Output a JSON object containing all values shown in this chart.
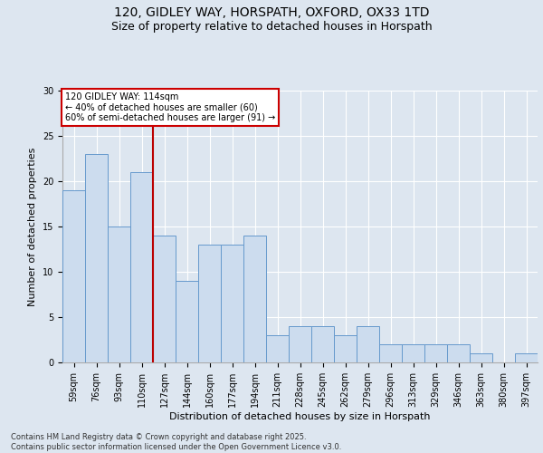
{
  "title_line1": "120, GIDLEY WAY, HORSPATH, OXFORD, OX33 1TD",
  "title_line2": "Size of property relative to detached houses in Horspath",
  "xlabel": "Distribution of detached houses by size in Horspath",
  "ylabel": "Number of detached properties",
  "categories": [
    "59sqm",
    "76sqm",
    "93sqm",
    "110sqm",
    "127sqm",
    "144sqm",
    "160sqm",
    "177sqm",
    "194sqm",
    "211sqm",
    "228sqm",
    "245sqm",
    "262sqm",
    "279sqm",
    "296sqm",
    "313sqm",
    "329sqm",
    "346sqm",
    "363sqm",
    "380sqm",
    "397sqm"
  ],
  "values": [
    19,
    23,
    15,
    21,
    14,
    9,
    13,
    13,
    14,
    3,
    4,
    4,
    3,
    4,
    2,
    2,
    2,
    2,
    1,
    0,
    1
  ],
  "bar_color": "#ccdcee",
  "bar_edge_color": "#6699cc",
  "bar_linewidth": 0.7,
  "vline_x_pos": 3.5,
  "vline_color": "#bb0000",
  "vline_linewidth": 1.5,
  "annotation_title": "120 GIDLEY WAY: 114sqm",
  "annotation_line2": "← 40% of detached houses are smaller (60)",
  "annotation_line3": "60% of semi-detached houses are larger (91) →",
  "annotation_box_edgecolor": "#cc0000",
  "annotation_box_facecolor": "white",
  "annotation_fontsize": 7.0,
  "ylim_max": 30,
  "yticks": [
    0,
    5,
    10,
    15,
    20,
    25,
    30
  ],
  "background_color": "#dde6f0",
  "plot_bg_color": "#dde6f0",
  "grid_color": "white",
  "title_fontsize1": 10,
  "title_fontsize2": 9,
  "xlabel_fontsize": 8,
  "ylabel_fontsize": 8,
  "tick_fontsize": 7,
  "footer_line1": "Contains HM Land Registry data © Crown copyright and database right 2025.",
  "footer_line2": "Contains public sector information licensed under the Open Government Licence v3.0.",
  "footer_fontsize": 6.0
}
